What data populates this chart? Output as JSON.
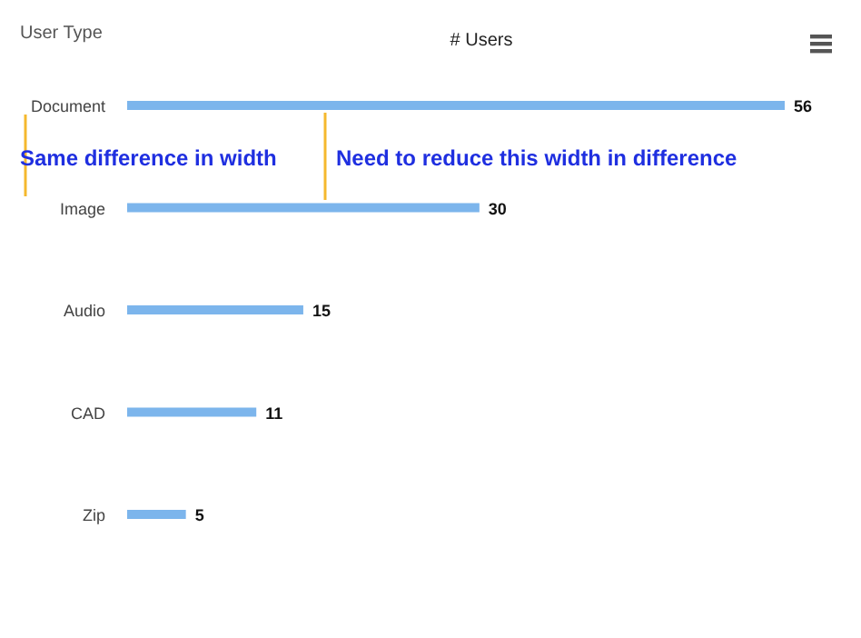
{
  "chart_data": {
    "type": "bar",
    "orientation": "horizontal",
    "title": "# Users",
    "ylabel": "User Type",
    "categories": [
      "Document",
      "Image",
      "Audio",
      "CAD",
      "Zip"
    ],
    "values": [
      56,
      30,
      15,
      11,
      5
    ],
    "color": "#7cb5ec",
    "data_labels": true,
    "annotations": [
      "Same difference in width",
      "Need to reduce this width in difference"
    ]
  }
}
